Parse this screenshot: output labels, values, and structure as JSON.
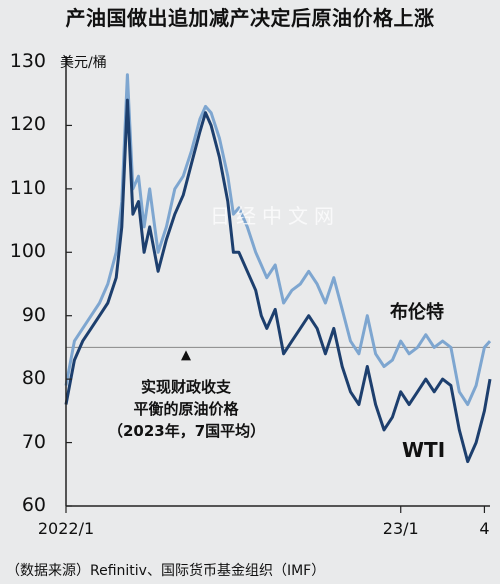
{
  "title": "产油国做出追加减产决定后原油价格上涨",
  "unit": "美元/桶",
  "watermark": "日经中文网",
  "source": "（数据来源）Refinitiv、国际货币基金组织（IMF）",
  "annotation": [
    "实现财政收支",
    "平衡的原油价格",
    "（2023年，7国平均）"
  ],
  "colors": {
    "brent": "#7ea6d0",
    "wti": "#1d3f6e",
    "reference": "#888888",
    "background": "#e9eaeb"
  },
  "chart_data": {
    "type": "line",
    "title": "产油国做出追加减产决定后原油价格上涨",
    "ylabel": "美元/桶",
    "ylim": [
      60,
      130
    ],
    "yticks": [
      60,
      70,
      80,
      90,
      100,
      110,
      120,
      130
    ],
    "xlim": [
      0,
      15.2
    ],
    "x_ticks": [
      {
        "label": "2022/1",
        "x": 0
      },
      {
        "label": "23/1",
        "x": 12
      },
      {
        "label": "4",
        "x": 15
      }
    ],
    "reference_line": {
      "value": 85,
      "label": "实现财政收支平衡的原油价格（2023年，7国平均）"
    },
    "grid": false,
    "series": [
      {
        "name": "布伦特",
        "x": [
          0,
          0.3,
          0.6,
          0.9,
          1.2,
          1.5,
          1.8,
          2.0,
          2.2,
          2.4,
          2.6,
          2.8,
          3.0,
          3.3,
          3.6,
          3.9,
          4.2,
          4.5,
          4.8,
          5.0,
          5.2,
          5.5,
          5.8,
          6.0,
          6.2,
          6.5,
          6.8,
          7.0,
          7.2,
          7.5,
          7.8,
          8.1,
          8.4,
          8.7,
          9.0,
          9.3,
          9.6,
          9.9,
          10.2,
          10.5,
          10.8,
          11.1,
          11.4,
          11.7,
          12.0,
          12.3,
          12.6,
          12.9,
          13.2,
          13.5,
          13.8,
          14.1,
          14.4,
          14.7,
          15.0,
          15.2
        ],
        "values": [
          79,
          86,
          88,
          90,
          92,
          95,
          100,
          108,
          128,
          110,
          112,
          104,
          110,
          100,
          104,
          110,
          112,
          116,
          121,
          123,
          122,
          118,
          112,
          106,
          107,
          104,
          100,
          98,
          96,
          98,
          92,
          94,
          95,
          97,
          95,
          92,
          96,
          91,
          86,
          84,
          90,
          84,
          82,
          83,
          86,
          84,
          85,
          87,
          85,
          86,
          85,
          78,
          76,
          79,
          85,
          86
        ]
      },
      {
        "name": "WTI",
        "x": [
          0,
          0.3,
          0.6,
          0.9,
          1.2,
          1.5,
          1.8,
          2.0,
          2.2,
          2.4,
          2.6,
          2.8,
          3.0,
          3.3,
          3.6,
          3.9,
          4.2,
          4.5,
          4.8,
          5.0,
          5.2,
          5.5,
          5.8,
          6.0,
          6.2,
          6.5,
          6.8,
          7.0,
          7.2,
          7.5,
          7.8,
          8.1,
          8.4,
          8.7,
          9.0,
          9.3,
          9.6,
          9.9,
          10.2,
          10.5,
          10.8,
          11.1,
          11.4,
          11.7,
          12.0,
          12.3,
          12.6,
          12.9,
          13.2,
          13.5,
          13.8,
          14.1,
          14.4,
          14.7,
          15.0,
          15.2
        ],
        "values": [
          76,
          83,
          86,
          88,
          90,
          92,
          96,
          104,
          124,
          106,
          108,
          100,
          104,
          97,
          102,
          106,
          109,
          114,
          119,
          122,
          120,
          115,
          108,
          100,
          100,
          97,
          94,
          90,
          88,
          91,
          84,
          86,
          88,
          90,
          88,
          84,
          88,
          82,
          78,
          76,
          82,
          76,
          72,
          74,
          78,
          76,
          78,
          80,
          78,
          80,
          79,
          72,
          67,
          70,
          75,
          80
        ]
      }
    ]
  }
}
